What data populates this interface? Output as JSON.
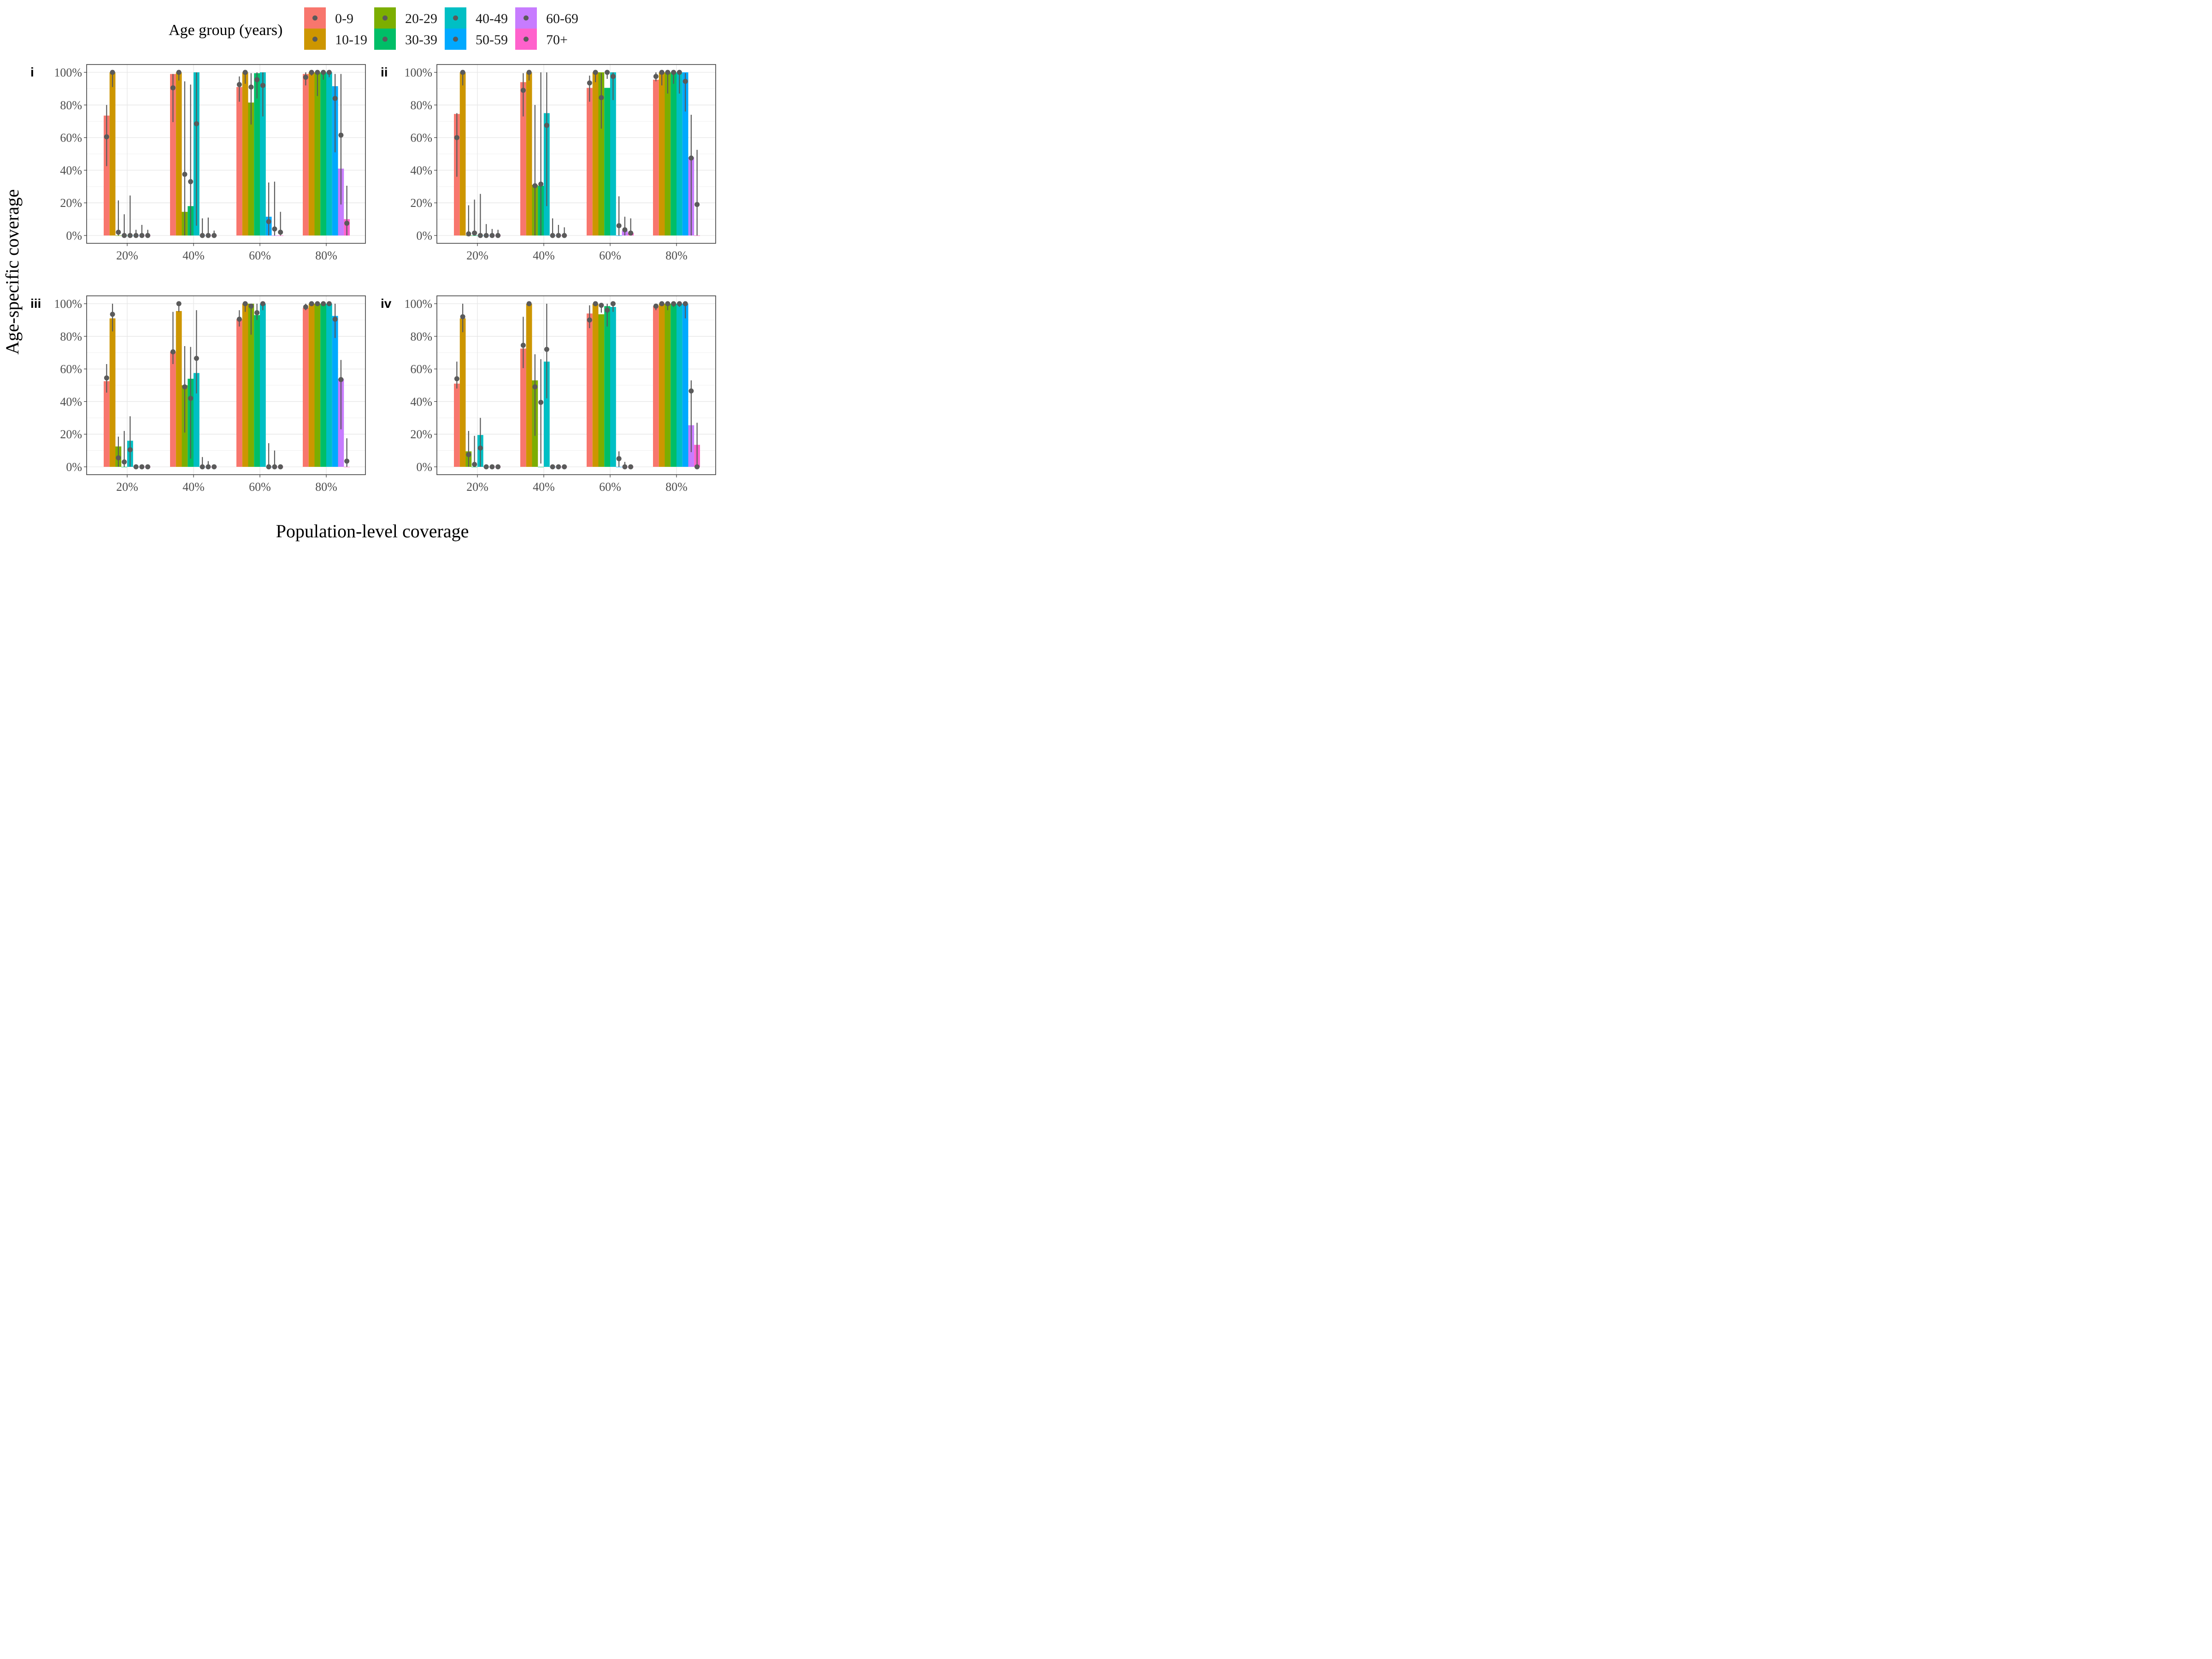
{
  "figure": {
    "xlabel": "Population-level coverage",
    "ylabel": "Age-specific coverage",
    "legend_title": "Age group (years)"
  },
  "chart_data": {
    "type": "bar",
    "subtype": "grouped bar with point estimates and error bars",
    "categories": [
      "20%",
      "40%",
      "60%",
      "80%"
    ],
    "yticks": [
      "0%",
      "20%",
      "40%",
      "60%",
      "80%",
      "100%"
    ],
    "ylim": [
      0,
      100
    ],
    "grid": true,
    "legend_position": "top",
    "groups": [
      {
        "name": "0-9",
        "color": "#F8766D"
      },
      {
        "name": "10-19",
        "color": "#CD9600"
      },
      {
        "name": "20-29",
        "color": "#7CAE00"
      },
      {
        "name": "30-39",
        "color": "#00BE67"
      },
      {
        "name": "40-49",
        "color": "#00BFC4"
      },
      {
        "name": "50-59",
        "color": "#00A9FF"
      },
      {
        "name": "60-69",
        "color": "#C77CFF"
      },
      {
        "name": "70+",
        "color": "#FF61CC"
      }
    ],
    "panels": [
      {
        "label": "i",
        "bars": [
          [
            73.5,
            100,
            0,
            0,
            0,
            0,
            0,
            0
          ],
          [
            99,
            100,
            14.5,
            18,
            100,
            0,
            0,
            0
          ],
          [
            91,
            100,
            81.5,
            99.5,
            100,
            11.5,
            0,
            0
          ],
          [
            99,
            100,
            100,
            100,
            100,
            91.5,
            41,
            10
          ]
        ],
        "points": [
          [
            60.5,
            100,
            2,
            0,
            0,
            0,
            0,
            0
          ],
          [
            90.5,
            100,
            37.5,
            33,
            68.5,
            0,
            0,
            0
          ],
          [
            92.5,
            100,
            91,
            95.5,
            92,
            8.5,
            4,
            2
          ],
          [
            97,
            100,
            100,
            100,
            100,
            84,
            61.5,
            7.5
          ]
        ],
        "lower": [
          [
            42.5,
            91,
            0,
            0,
            0,
            0,
            0,
            0
          ],
          [
            69.5,
            95,
            0,
            0,
            6,
            0,
            0,
            0
          ],
          [
            82,
            93,
            68,
            84,
            73,
            0,
            0,
            0
          ],
          [
            92,
            98,
            85.5,
            95.5,
            97,
            51,
            19,
            0
          ]
        ],
        "upper": [
          [
            80,
            100,
            21.5,
            13,
            24.5,
            3.5,
            6.5,
            3.5
          ],
          [
            99,
            100,
            94.5,
            92.5,
            100,
            10.5,
            11,
            3
          ],
          [
            97.5,
            100,
            99.5,
            100,
            100,
            32.5,
            33,
            14.5
          ],
          [
            100,
            100,
            100,
            100,
            100,
            99,
            99,
            30.5
          ]
        ]
      },
      {
        "label": "ii",
        "bars": [
          [
            74.5,
            100,
            0,
            0,
            0,
            0,
            0,
            0
          ],
          [
            94,
            100,
            31,
            30.5,
            75,
            0,
            0,
            0
          ],
          [
            90.5,
            100,
            100,
            90.5,
            100,
            0,
            3,
            1.5
          ],
          [
            95.5,
            100,
            100,
            100,
            100,
            100,
            48,
            0
          ]
        ],
        "points": [
          [
            60,
            100,
            1,
            1.5,
            0,
            0,
            0,
            0
          ],
          [
            89,
            100,
            30.5,
            31.5,
            67.5,
            0,
            0,
            0
          ],
          [
            93.5,
            100,
            84.5,
            100,
            97.5,
            6,
            3.5,
            1.5
          ],
          [
            97.5,
            100,
            100,
            100,
            100,
            94.5,
            47.5,
            19
          ]
        ],
        "lower": [
          [
            36,
            92,
            0,
            0,
            0,
            0,
            0,
            0
          ],
          [
            73,
            95,
            0,
            0,
            18,
            0,
            0,
            0
          ],
          [
            82,
            94,
            65.5,
            96,
            83,
            0,
            0,
            0
          ],
          [
            94.5,
            92,
            87,
            93,
            87,
            76,
            0,
            0
          ]
        ],
        "upper": [
          [
            75,
            100,
            18.5,
            22,
            25.5,
            7,
            4,
            3.5
          ],
          [
            99.5,
            100,
            80,
            100,
            100,
            10.5,
            6.5,
            5
          ],
          [
            98,
            100,
            99.5,
            100,
            100,
            24,
            11.5,
            10.5
          ],
          [
            100,
            100,
            100,
            100,
            100,
            99.5,
            74,
            52.5
          ]
        ]
      },
      {
        "label": "iii",
        "bars": [
          [
            52.5,
            91,
            12.5,
            0,
            16,
            0,
            0,
            0
          ],
          [
            70.5,
            95.5,
            50,
            54,
            57.5,
            0,
            0,
            0
          ],
          [
            90.5,
            100,
            100,
            93,
            100,
            0,
            0,
            0
          ],
          [
            97.5,
            100,
            100,
            100,
            100,
            92.5,
            54,
            0
          ]
        ],
        "points": [
          [
            54.5,
            93.5,
            5.5,
            3,
            10.5,
            0,
            0,
            0
          ],
          [
            70.5,
            100,
            49,
            42,
            66.5,
            0,
            0,
            0
          ],
          [
            90.5,
            100,
            98.5,
            94.5,
            100,
            0,
            0,
            0
          ],
          [
            98,
            100,
            100,
            100,
            100,
            90.5,
            53.5,
            3.5
          ]
        ],
        "lower": [
          [
            45.5,
            83,
            0,
            0,
            0,
            0,
            0,
            0
          ],
          [
            63,
            95,
            21,
            5,
            45,
            0,
            0,
            0
          ],
          [
            86,
            95,
            81,
            90,
            96,
            0,
            0,
            0
          ],
          [
            96,
            99,
            99,
            99,
            99,
            79,
            23,
            0
          ]
        ],
        "upper": [
          [
            63,
            100,
            18.5,
            22,
            31,
            0,
            0,
            0
          ],
          [
            95,
            100,
            74,
            73.5,
            96,
            6,
            3.5,
            0
          ],
          [
            96,
            100,
            100,
            100,
            100,
            14.5,
            10,
            0
          ],
          [
            100,
            100,
            100,
            100,
            100,
            100,
            65.5,
            17.5
          ]
        ]
      },
      {
        "label": "iv",
        "bars": [
          [
            51,
            91,
            9.5,
            0,
            19.5,
            0,
            0,
            0
          ],
          [
            72.5,
            100,
            53,
            0,
            64.5,
            0,
            0,
            0
          ],
          [
            94,
            100,
            93.5,
            98.5,
            98,
            0,
            0,
            0
          ],
          [
            98.5,
            100,
            100,
            100,
            100,
            100,
            25.5,
            13.5
          ]
        ],
        "points": [
          [
            54,
            92,
            7.5,
            1.5,
            11.5,
            0,
            0,
            0
          ],
          [
            74.5,
            100,
            49,
            39.5,
            72,
            0,
            0,
            0
          ],
          [
            90,
            100,
            99,
            96,
            100,
            5,
            0,
            0
          ],
          [
            98.5,
            100,
            100,
            100,
            100,
            100,
            46.5,
            0
          ]
        ],
        "lower": [
          [
            48,
            82.5,
            0,
            0,
            0,
            0,
            0,
            0
          ],
          [
            60.5,
            99,
            19,
            2,
            42,
            0,
            0,
            0
          ],
          [
            85,
            99,
            94.5,
            86,
            95,
            0,
            0,
            0
          ],
          [
            96,
            99,
            96,
            98,
            98,
            91,
            9,
            0
          ]
        ],
        "upper": [
          [
            64.5,
            100,
            22,
            19,
            30,
            0,
            0,
            0
          ],
          [
            92,
            100,
            69,
            66,
            100,
            0,
            0,
            0
          ],
          [
            99,
            100,
            100,
            100,
            100,
            9.5,
            3,
            0
          ],
          [
            100,
            100,
            100,
            100,
            100,
            100,
            53,
            27
          ]
        ]
      }
    ]
  }
}
